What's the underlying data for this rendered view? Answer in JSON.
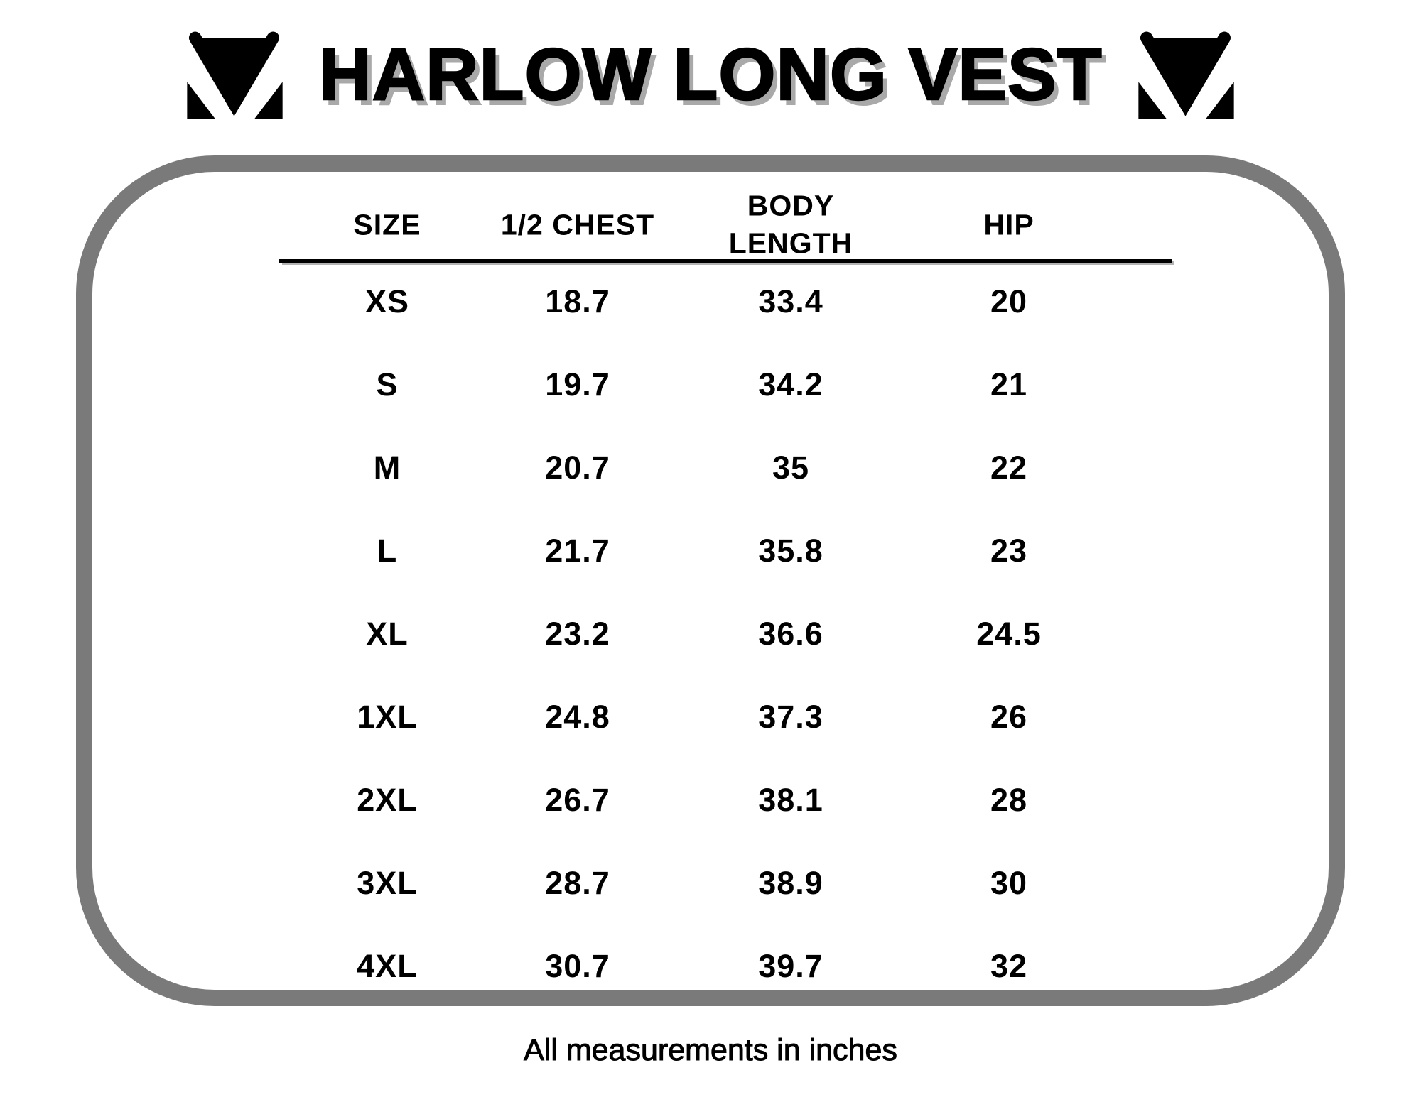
{
  "title": "HARLOW LONG VEST",
  "brand": {
    "logo_name": "mv-monogram"
  },
  "footnote": "All measurements in inches",
  "colors": {
    "background": "#ffffff",
    "text": "#000000",
    "frame": "#7a7a7a",
    "title_shadow": "#a9a9a9"
  },
  "table": {
    "columns": [
      "SIZE",
      "1/2 CHEST",
      "BODY\nLENGTH",
      "HIP"
    ],
    "rows": [
      {
        "size": "XS",
        "half_chest": "18.7",
        "body_length": "33.4",
        "hip": "20"
      },
      {
        "size": "S",
        "half_chest": "19.7",
        "body_length": "34.2",
        "hip": "21"
      },
      {
        "size": "M",
        "half_chest": "20.7",
        "body_length": "35",
        "hip": "22"
      },
      {
        "size": "L",
        "half_chest": "21.7",
        "body_length": "35.8",
        "hip": "23"
      },
      {
        "size": "XL",
        "half_chest": "23.2",
        "body_length": "36.6",
        "hip": "24.5"
      },
      {
        "size": "1XL",
        "half_chest": "24.8",
        "body_length": "37.3",
        "hip": "26"
      },
      {
        "size": "2XL",
        "half_chest": "26.7",
        "body_length": "38.1",
        "hip": "28"
      },
      {
        "size": "3XL",
        "half_chest": "28.7",
        "body_length": "38.9",
        "hip": "30"
      },
      {
        "size": "4XL",
        "half_chest": "30.7",
        "body_length": "39.7",
        "hip": "32"
      }
    ]
  },
  "chart_data": {
    "type": "table",
    "title": "HARLOW LONG VEST",
    "columns": [
      "SIZE",
      "1/2 CHEST",
      "BODY LENGTH",
      "HIP"
    ],
    "rows": [
      [
        "XS",
        18.7,
        33.4,
        20
      ],
      [
        "S",
        19.7,
        34.2,
        21
      ],
      [
        "M",
        20.7,
        35,
        22
      ],
      [
        "L",
        21.7,
        35.8,
        23
      ],
      [
        "XL",
        23.2,
        36.6,
        24.5
      ],
      [
        "1XL",
        24.8,
        37.3,
        26
      ],
      [
        "2XL",
        26.7,
        38.1,
        28
      ],
      [
        "3XL",
        28.7,
        38.9,
        30
      ],
      [
        "4XL",
        30.7,
        39.7,
        32
      ]
    ],
    "note": "All measurements in inches"
  }
}
